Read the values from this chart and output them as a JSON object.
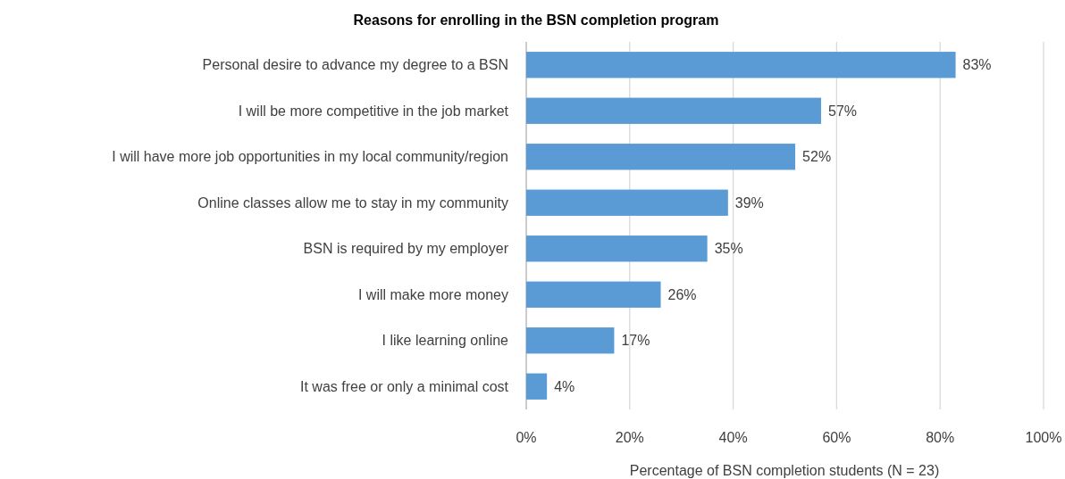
{
  "chart_data": {
    "type": "bar",
    "orientation": "horizontal",
    "title": "Reasons for enrolling in the BSN completion program",
    "xlabel": "Percentage of BSN completion students (N = 23)",
    "categories": [
      "Personal desire to advance my degree to a BSN",
      "I will be more competitive in the job market",
      "I will have more job opportunities in my local community/region",
      "Online classes allow me to stay in my community",
      "BSN is required by my employer",
      "I will make more money",
      "I like learning online",
      "It was free or only a minimal cost"
    ],
    "values": [
      83,
      57,
      52,
      39,
      35,
      26,
      17,
      4
    ],
    "value_labels": [
      "83%",
      "57%",
      "52%",
      "39%",
      "35%",
      "26%",
      "17%",
      "4%"
    ],
    "color": "#5b9bd5",
    "xlim": [
      0,
      100
    ],
    "xticks": [
      {
        "value": 0,
        "label": "0%"
      },
      {
        "value": 20,
        "label": "20%"
      },
      {
        "value": 40,
        "label": "40%"
      },
      {
        "value": 60,
        "label": "60%"
      },
      {
        "value": 80,
        "label": "80%"
      },
      {
        "value": 100,
        "label": "100%"
      }
    ],
    "grid": "x"
  }
}
